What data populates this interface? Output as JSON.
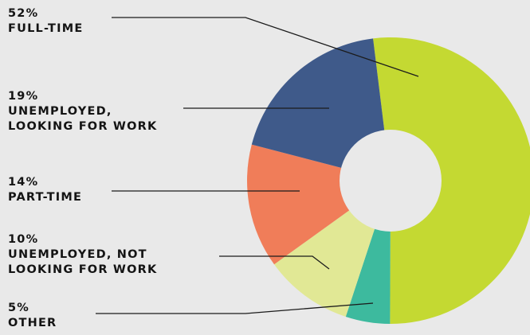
{
  "chart_data": {
    "type": "pie",
    "style": "donut",
    "title": "",
    "slices": [
      {
        "label": "FULL-TIME",
        "lines": [
          "FULL-TIME"
        ],
        "percent_label": "52%",
        "value": 52,
        "color": "#c4d932"
      },
      {
        "label": "OTHER",
        "lines": [
          "OTHER"
        ],
        "percent_label": "5%",
        "value": 5,
        "color": "#3dba9e"
      },
      {
        "label": "UNEMPLOYED, NOT LOOKING FOR WORK",
        "lines": [
          "UNEMPLOYED, NOT",
          "LOOKING FOR WORK"
        ],
        "percent_label": "10%",
        "value": 10,
        "color": "#e1e895"
      },
      {
        "label": "PART-TIME",
        "lines": [
          "PART-TIME"
        ],
        "percent_label": "14%",
        "value": 14,
        "color": "#f07d59"
      },
      {
        "label": "UNEMPLOYED, LOOKING FOR WORK",
        "lines": [
          "UNEMPLOYED,",
          "LOOKING FOR WORK"
        ],
        "percent_label": "19%",
        "value": 19,
        "color": "#3f5a8a"
      }
    ]
  }
}
